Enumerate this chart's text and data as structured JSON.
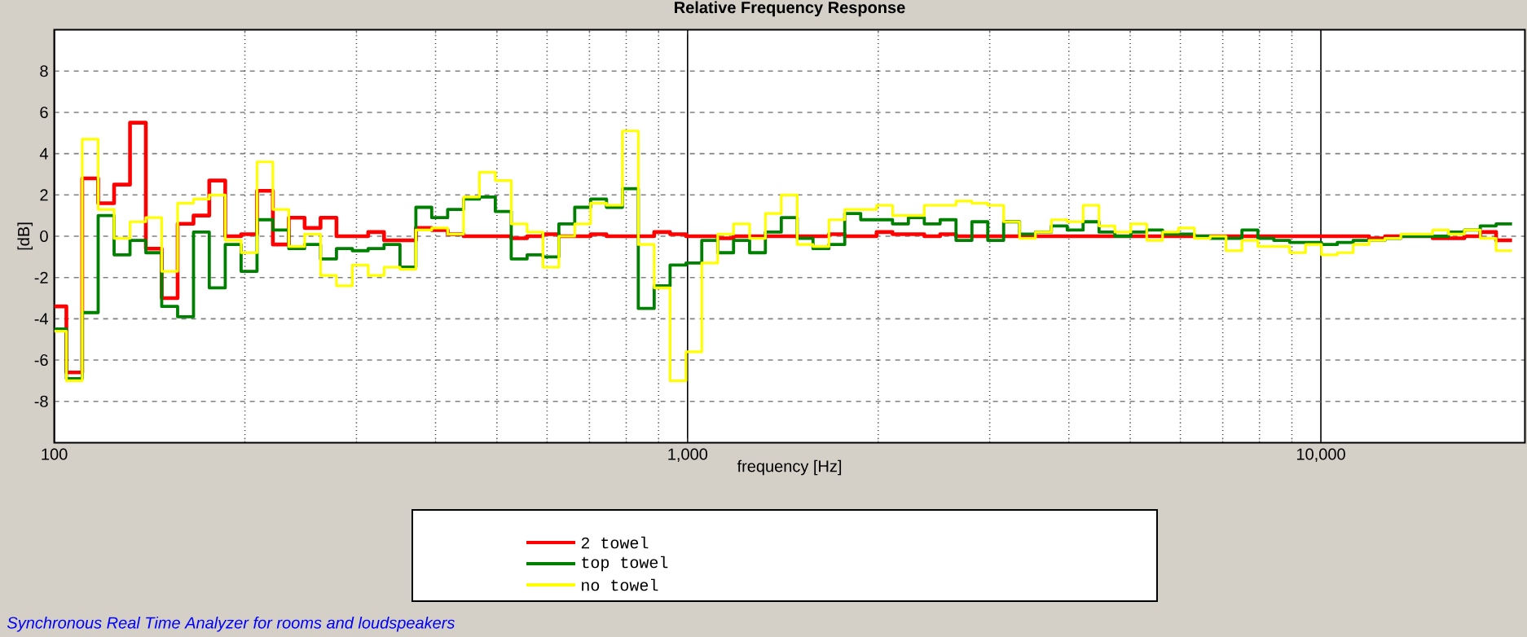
{
  "chart_data": {
    "type": "step",
    "title": "Relative Frequency Response",
    "xlabel": "frequency [Hz]",
    "ylabel": "[dB]",
    "annotations": [
      "Synchronous Real Time Analyzer for rooms and loudspeakers"
    ],
    "log": "x",
    "grid": true,
    "legend": "bottom",
    "line_style": "solid",
    "marker": "none",
    "xlim": [
      100,
      21000
    ],
    "ylim": [
      -10,
      10
    ],
    "xticks": [
      {
        "value": 100,
        "label": "100"
      },
      {
        "value": 200,
        "label": null
      },
      {
        "value": 300,
        "label": null
      },
      {
        "value": 400,
        "label": null
      },
      {
        "value": 500,
        "label": null
      },
      {
        "value": 600,
        "label": null
      },
      {
        "value": 700,
        "label": null
      },
      {
        "value": 800,
        "label": null
      },
      {
        "value": 900,
        "label": null
      },
      {
        "value": 1000,
        "label": "1,000"
      },
      {
        "value": 2000,
        "label": null
      },
      {
        "value": 3000,
        "label": null
      },
      {
        "value": 4000,
        "label": null
      },
      {
        "value": 5000,
        "label": null
      },
      {
        "value": 6000,
        "label": null
      },
      {
        "value": 7000,
        "label": null
      },
      {
        "value": 8000,
        "label": null
      },
      {
        "value": 9000,
        "label": null
      },
      {
        "value": 10000,
        "label": "10,000"
      }
    ],
    "yticks": [
      -8,
      -6,
      -4,
      -2,
      0,
      2,
      4,
      6,
      8
    ],
    "x": [
      100,
      104.5,
      110.7,
      117.3,
      124.3,
      131.7,
      139.5,
      147.8,
      156.6,
      165.9,
      175.7,
      186.2,
      197.3,
      209,
      221.4,
      234.6,
      248.5,
      263.3,
      279,
      295.6,
      313.1,
      331.7,
      351.5,
      372.4,
      394.5,
      418,
      442.9,
      469.2,
      497.1,
      526.7,
      558,
      591.2,
      626.3,
      663.5,
      703,
      744.8,
      789.1,
      836,
      885.7,
      938.4,
      994.2,
      1053,
      1116,
      1182,
      1253,
      1327,
      1406,
      1490,
      1578,
      1672,
      1771,
      1877,
      1988,
      2107,
      2232,
      2365,
      2505,
      2654,
      2812,
      2979,
      3156,
      3344,
      3543,
      3754,
      3977,
      4213,
      4464,
      4730,
      5011,
      5309,
      5624,
      5959,
      6313,
      6688,
      7086,
      7507,
      7954,
      8427,
      8928,
      9459,
      10021,
      10617,
      11248,
      11917,
      12626,
      13376,
      14172,
      15014,
      15907,
      16853,
      17855,
      18917,
      20040
    ],
    "series": [
      {
        "name": "2 towel",
        "color": "#ff0000",
        "values": [
          -3.4,
          -6.6,
          2.8,
          1.6,
          2.5,
          5.5,
          -0.6,
          -3.0,
          0.6,
          1.0,
          2.7,
          0.0,
          0.1,
          2.2,
          -0.4,
          0.9,
          0.4,
          0.9,
          0.0,
          0.0,
          0.2,
          -0.2,
          -0.2,
          0.4,
          0.3,
          0.1,
          0.0,
          0.0,
          0.0,
          -0.1,
          0.0,
          0.1,
          0.0,
          0.0,
          0.1,
          0.0,
          0.0,
          0.0,
          0.2,
          0.1,
          0.0,
          0.0,
          -0.1,
          0.0,
          0.0,
          0.0,
          0.0,
          0.0,
          0.0,
          0.1,
          0.0,
          0.0,
          0.2,
          0.1,
          0.1,
          0.0,
          0.1,
          0.0,
          0.0,
          0.0,
          0.0,
          0.0,
          0.0,
          0.0,
          0.0,
          0.0,
          0.0,
          0.0,
          0.0,
          0.0,
          0.0,
          0.0,
          0.0,
          0.0,
          0.0,
          0.0,
          0.0,
          0.0,
          0.0,
          0.0,
          0.0,
          0.0,
          0.0,
          -0.1,
          0.0,
          0.0,
          0.0,
          -0.1,
          -0.1,
          0.0,
          0.2,
          -0.2,
          -0.2
        ]
      },
      {
        "name": "top towel",
        "color": "#008000",
        "values": [
          -4.5,
          -6.9,
          -3.7,
          1.0,
          -0.9,
          -0.2,
          -0.8,
          -3.4,
          -3.9,
          0.2,
          -2.5,
          -0.4,
          -1.7,
          0.8,
          0.3,
          -0.6,
          -0.4,
          -1.1,
          -0.6,
          -0.7,
          -0.6,
          -0.4,
          -1.5,
          1.4,
          0.9,
          1.3,
          1.8,
          1.9,
          1.2,
          -1.1,
          -0.9,
          -1.0,
          0.6,
          1.4,
          1.8,
          1.4,
          2.3,
          -3.5,
          -2.4,
          -1.4,
          -1.3,
          -0.2,
          -0.8,
          -0.2,
          -0.8,
          0.2,
          0.9,
          -0.1,
          -0.6,
          -0.4,
          1.1,
          0.8,
          0.8,
          0.6,
          0.9,
          0.6,
          0.8,
          -0.2,
          0.7,
          -0.2,
          0.7,
          0.1,
          0.2,
          0.5,
          0.3,
          0.7,
          0.2,
          0.0,
          0.2,
          0.3,
          0.1,
          0.1,
          0.0,
          -0.1,
          -0.1,
          0.3,
          -0.1,
          -0.2,
          -0.3,
          -0.3,
          -0.4,
          -0.3,
          -0.2,
          -0.2,
          -0.1,
          0.0,
          0.0,
          0.0,
          0.2,
          0.3,
          0.5,
          0.6,
          0.6
        ]
      },
      {
        "name": "no towel",
        "color": "#ffff00",
        "values": [
          -4.6,
          -7.0,
          4.7,
          1.3,
          -0.1,
          0.7,
          0.9,
          -1.7,
          1.6,
          1.8,
          2.0,
          -0.2,
          -0.8,
          3.6,
          1.3,
          -0.5,
          0.1,
          -1.9,
          -2.4,
          -1.4,
          -1.9,
          -1.5,
          -1.6,
          0.3,
          0.4,
          0.1,
          1.9,
          3.1,
          2.7,
          0.6,
          0.2,
          -1.5,
          0.0,
          0.6,
          1.6,
          1.5,
          5.1,
          -0.4,
          -2.5,
          -7.0,
          -5.6,
          -1.3,
          0.1,
          0.6,
          -0.1,
          1.1,
          2.0,
          -0.4,
          -0.5,
          0.8,
          1.3,
          1.3,
          1.5,
          1.0,
          1.0,
          1.5,
          1.5,
          1.7,
          1.6,
          1.5,
          0.7,
          -0.1,
          0.2,
          0.8,
          0.7,
          1.5,
          0.5,
          0.2,
          0.6,
          -0.2,
          0.2,
          0.4,
          -0.1,
          0.0,
          -0.7,
          -0.2,
          -0.5,
          -0.5,
          -0.8,
          -0.4,
          -0.9,
          -0.8,
          -0.4,
          -0.2,
          -0.1,
          0.1,
          0.1,
          0.3,
          0.1,
          0.3,
          -0.1,
          -0.7,
          -0.7
        ]
      }
    ]
  }
}
